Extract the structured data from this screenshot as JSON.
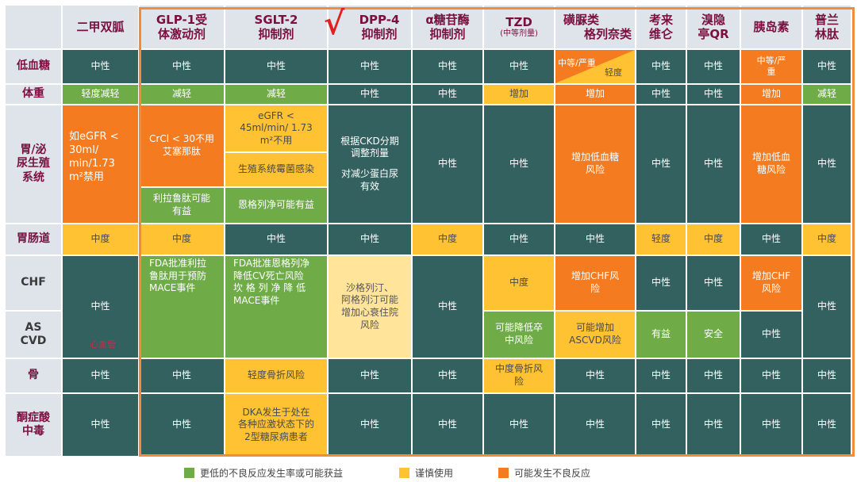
{
  "columns": [
    "二甲双胍",
    "GLP-1受体激动剂",
    "SGLT-2抑制剂",
    "DPP-4抑制剂",
    "α糖苷酶抑制剂",
    "TZD",
    "磺脲类格列奈类",
    "考来维仑",
    "溴隐亭QR",
    "胰岛素",
    "普兰林肽"
  ],
  "column_headers": {
    "metformin": "二甲双胍",
    "glp1": [
      "GLP-1受",
      "体激动剂"
    ],
    "sglt2": [
      "SGLT-2",
      "抑制剂"
    ],
    "dpp4": [
      "DPP-4",
      "抑制剂"
    ],
    "agi": [
      "α糖苷酶",
      "抑制剂"
    ],
    "tzd": "TZD",
    "tzd_note": "(中等剂量)",
    "su": [
      "磺脲类",
      "格列奈类"
    ],
    "colesevelam": [
      "考来",
      "维仑"
    ],
    "bromocriptine": [
      "溴隐",
      "亭QR"
    ],
    "insulin": "胰岛素",
    "pramlintide": [
      "普兰",
      "林肽"
    ]
  },
  "check_mark": "√",
  "rows": {
    "hypoglycemia": "低血糖",
    "weight": "体重",
    "renal": [
      "胃/泌",
      "尿生殖",
      "系统"
    ],
    "gi": "胃肠道",
    "chf": "CHF",
    "ascvd": [
      "AS",
      "CVD"
    ],
    "bone": "骨",
    "dka": [
      "酮症酸",
      "中毒"
    ]
  },
  "cells": {
    "neutral": "中性",
    "mild_weight_loss": "轻度减轻",
    "weight_loss": "减轻",
    "weight_gain": "增加",
    "hypo_su": "中等/严重",
    "hypo_su_mild": "轻度",
    "hypo_insulin": [
      "中等/严",
      "重"
    ],
    "renal_metformin": [
      "如eGFR <",
      "30ml/",
      "min/1.73",
      "m²禁用"
    ],
    "renal_metformin_u": "eGFR",
    "renal_glp1_top": [
      "CrCl < 30不用",
      "艾塞那肽"
    ],
    "renal_glp1_bottom": [
      "利拉鲁肽可能",
      "有益"
    ],
    "renal_sglt2_top": [
      "eGFR <",
      "45ml/min/ 1.73",
      "m²不用"
    ],
    "renal_sglt2_mid": "生殖系统霉菌感染",
    "renal_sglt2_bottom": "恩格列净可能有益",
    "renal_dpp4": [
      "根据CKD分期",
      "调整剂量",
      "",
      "对减少蛋白尿",
      "有效"
    ],
    "renal_su": [
      "增加低血糖",
      "风险"
    ],
    "renal_insulin": [
      "增加低血",
      "糖风险"
    ],
    "moderate": "中度",
    "mild": "轻度",
    "chf_glp1": [
      "FDA批准利拉",
      "鲁肽用于预防",
      "MACE事件"
    ],
    "chf_sglt2": [
      "FDA批准恩格列净",
      "降低CV死亡风险",
      "坎 格 列 净 降 低",
      "MACE事件"
    ],
    "chf_dpp4": [
      "沙格列汀、",
      "阿格列汀可能",
      "增加心衰住院",
      "风险"
    ],
    "chf_su": [
      "增加CHF风",
      "险"
    ],
    "chf_insulin": [
      "增加CHF",
      "风险"
    ],
    "ascvd_tzd": [
      "可能降低卒",
      "中风险"
    ],
    "ascvd_su": [
      "可能增加",
      "ASCVD风险"
    ],
    "beneficial": "有益",
    "safe": "安全",
    "cv_label": "心血管",
    "bone_sglt2": "轻度骨折风险",
    "bone_tzd": [
      "中度骨折风",
      "险"
    ],
    "dka_sglt2": [
      "DKA发生于处在",
      "各种应激状态下的",
      "2型糖尿病患者"
    ]
  },
  "legend": [
    {
      "label": "更低的不良反应发生率或可能获益",
      "color": "#6fac47"
    },
    {
      "label": "谨慎使用",
      "color": "#ffc233"
    },
    {
      "label": "可能发生不良反应",
      "color": "#f47b20"
    }
  ],
  "colors": {
    "teal": "#32615f",
    "green": "#6fac47",
    "yellow": "#ffc233",
    "orange": "#f47b20",
    "pale_yellow": "#ffe49a",
    "header_bg": "#dfe3ea",
    "header_text": "#7b1040",
    "frame": "#f08c3c"
  }
}
